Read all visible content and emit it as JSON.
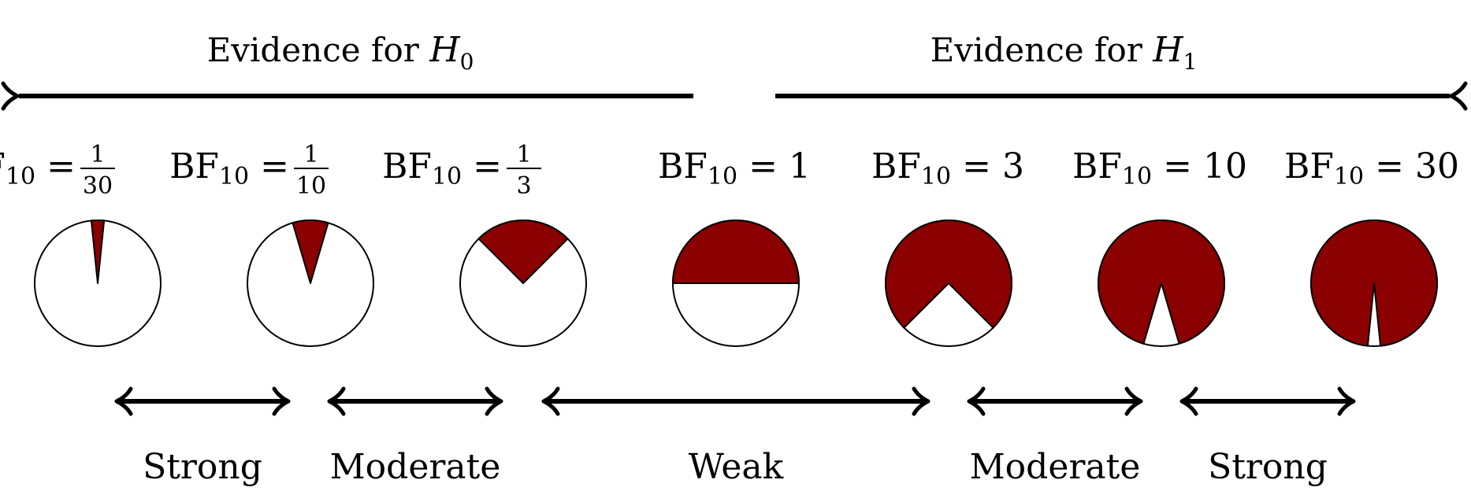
{
  "headers": {
    "left": {
      "text": "Evidence for ",
      "symbol": "H",
      "subscript": "0"
    },
    "right": {
      "text": "Evidence for ",
      "symbol": "H",
      "subscript": "1"
    }
  },
  "bf_label": {
    "base": "BF",
    "subscript": "10",
    "equals": "="
  },
  "bayes_factors": [
    {
      "kind": "fraction",
      "numerator": "1",
      "denominator": "30",
      "value": 0.0333333,
      "posterior_h1": 0.0322581
    },
    {
      "kind": "fraction",
      "numerator": "1",
      "denominator": "10",
      "value": 0.1,
      "posterior_h1": 0.0909091
    },
    {
      "kind": "fraction",
      "numerator": "1",
      "denominator": "3",
      "value": 0.3333333,
      "posterior_h1": 0.25
    },
    {
      "kind": "number",
      "text": "1",
      "value": 1,
      "posterior_h1": 0.5
    },
    {
      "kind": "number",
      "text": "3",
      "value": 3,
      "posterior_h1": 0.75
    },
    {
      "kind": "number",
      "text": "10",
      "value": 10,
      "posterior_h1": 0.9090909
    },
    {
      "kind": "number",
      "text": "30",
      "value": 30,
      "posterior_h1": 0.9677419
    }
  ],
  "categories": [
    {
      "label": "Strong"
    },
    {
      "label": "Moderate"
    },
    {
      "label": "Weak"
    },
    {
      "label": "Moderate"
    },
    {
      "label": "Strong"
    }
  ],
  "colors": {
    "fill": "#8b0000",
    "stroke": "#000000",
    "background": "#ffffff"
  }
}
